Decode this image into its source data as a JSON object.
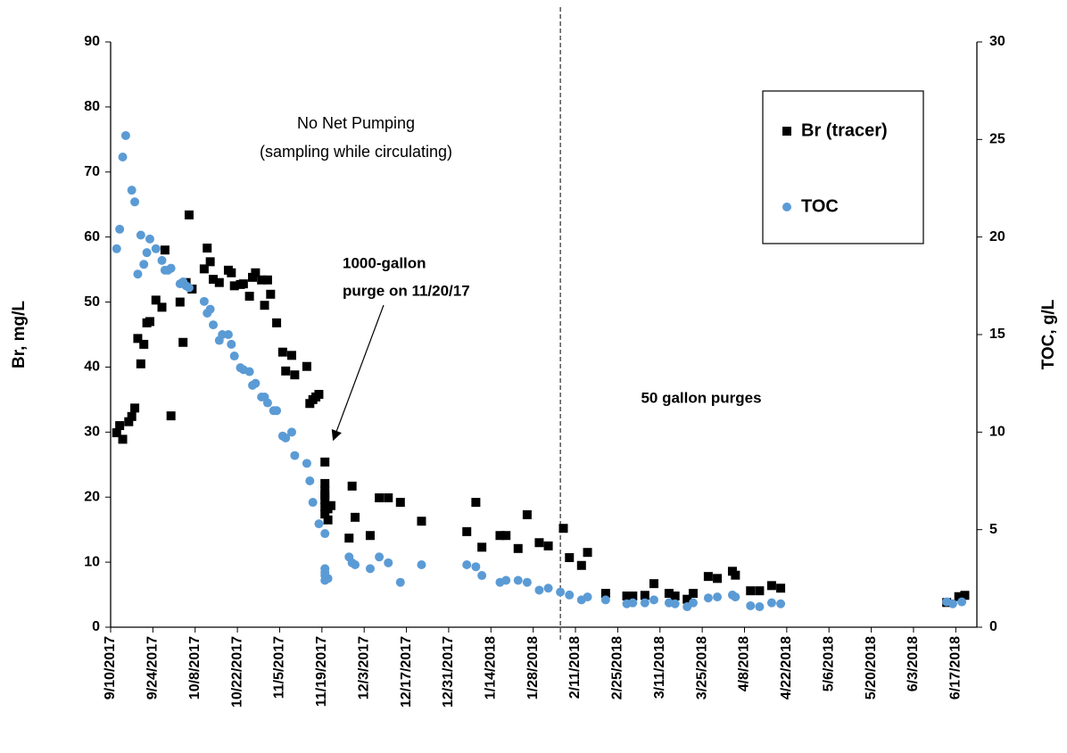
{
  "chart_data": {
    "type": "scatter",
    "y_label": "Br, mg/L",
    "y2_label": "TOC, g/L",
    "annotations": [
      "No Net Pumping",
      "(sampling while circulating)",
      "1000-gallon",
      "purge on 11/20/17",
      "50 gallon purges"
    ],
    "vline": "2/6/2018",
    "legend": "upper right",
    "xlim": [
      "9/10/2017",
      "6/24/2018"
    ],
    "xticks": [
      "9/10/2017",
      "9/24/2017",
      "10/8/2017",
      "10/22/2017",
      "11/5/2017",
      "11/19/2017",
      "12/3/2017",
      "12/17/2017",
      "12/31/2017",
      "1/14/2018",
      "1/28/2018",
      "2/11/2018",
      "2/25/2018",
      "3/11/2018",
      "3/25/2018",
      "4/8/2018",
      "4/22/2018",
      "5/6/2018",
      "5/20/2018",
      "6/3/2018",
      "6/17/2018"
    ],
    "ylim": [
      0,
      90
    ],
    "yticks": [
      0,
      10,
      20,
      30,
      40,
      50,
      60,
      70,
      80,
      90
    ],
    "y2lim": [
      0,
      30
    ],
    "y2ticks": [
      0,
      5,
      10,
      15,
      20,
      25,
      30
    ],
    "series": [
      {
        "name": "Br (tracer)",
        "color": "#000000",
        "marker": "square",
        "x": [
          "9/12/2017",
          "9/13/2017",
          "9/14/2017",
          "9/16/2017",
          "9/17/2017",
          "9/18/2017",
          "9/19/2017",
          "9/20/2017",
          "9/21/2017",
          "9/22/2017",
          "9/23/2017",
          "9/25/2017",
          "9/27/2017",
          "9/28/2017",
          "9/30/2017",
          "10/3/2017",
          "10/4/2017",
          "10/5/2017",
          "10/6/2017",
          "10/7/2017",
          "10/11/2017",
          "10/12/2017",
          "10/13/2017",
          "10/14/2017",
          "10/16/2017",
          "10/19/2017",
          "10/20/2017",
          "10/21/2017",
          "10/23/2017",
          "10/24/2017",
          "10/26/2017",
          "10/27/2017",
          "10/28/2017",
          "10/30/2017",
          "10/31/2017",
          "11/1/2017",
          "11/2/2017",
          "11/4/2017",
          "11/6/2017",
          "11/7/2017",
          "11/9/2017",
          "11/10/2017",
          "11/14/2017",
          "11/15/2017",
          "11/16/2017",
          "11/17/2017",
          "11/18/2017",
          "11/20/2017",
          "11/20/2017",
          "11/20/2017",
          "11/20/2017",
          "11/20/2017",
          "11/20/2017",
          "11/20/2017",
          "11/21/2017",
          "11/21/2017",
          "11/22/2017",
          "11/28/2017",
          "11/29/2017",
          "11/30/2017",
          "12/5/2017",
          "12/8/2017",
          "12/11/2017",
          "12/15/2017",
          "12/22/2017",
          "1/6/2018",
          "1/9/2018",
          "1/11/2018",
          "1/17/2018",
          "1/19/2018",
          "1/23/2018",
          "1/26/2018",
          "1/30/2018",
          "2/2/2018",
          "2/7/2018",
          "2/9/2018",
          "2/13/2018",
          "2/15/2018",
          "2/21/2018",
          "2/28/2018",
          "3/2/2018",
          "3/6/2018",
          "3/9/2018",
          "3/14/2018",
          "3/16/2018",
          "3/20/2018",
          "3/22/2018",
          "3/27/2018",
          "3/30/2018",
          "4/4/2018",
          "4/5/2018",
          "4/10/2018",
          "4/13/2018",
          "4/17/2018",
          "4/20/2018",
          "6/14/2018",
          "6/18/2018",
          "6/20/2018"
        ],
        "values": [
          29.9,
          31,
          28.9,
          31.6,
          32.4,
          33.7,
          44.4,
          40.5,
          43.5,
          46.8,
          47,
          50.3,
          49.2,
          58,
          32.5,
          50,
          43.8,
          53,
          63.4,
          52,
          55.1,
          58.3,
          56.2,
          53.5,
          53,
          54.9,
          54.5,
          52.5,
          52.7,
          52.8,
          50.9,
          53.8,
          54.5,
          53.4,
          49.5,
          53.4,
          51.2,
          46.8,
          42.3,
          39.4,
          41.8,
          38.8,
          40.1,
          34.4,
          35,
          35.4,
          35.8,
          25.4,
          22.1,
          21,
          20.3,
          19.6,
          18.5,
          17.4,
          16.5,
          18.2,
          18.7,
          13.7,
          21.7,
          16.9,
          14.1,
          19.9,
          19.9,
          19.2,
          16.3,
          14.7,
          19.2,
          12.3,
          14.1,
          14.1,
          12.1,
          17.3,
          13,
          12.5,
          15.2,
          10.7,
          9.5,
          11.5,
          5.2,
          4.8,
          4.8,
          4.9,
          6.7,
          5.2,
          4.8,
          4.3,
          5.2,
          7.8,
          7.5,
          8.6,
          8,
          5.6,
          5.6,
          6.4,
          6,
          3.8,
          4.7,
          4.9
        ]
      },
      {
        "name": "TOC",
        "color": "#5b9bd5",
        "marker": "circle",
        "axis": "y2",
        "x": [
          "9/12/2017",
          "9/13/2017",
          "9/14/2017",
          "9/15/2017",
          "9/17/2017",
          "9/18/2017",
          "9/19/2017",
          "9/20/2017",
          "9/21/2017",
          "9/22/2017",
          "9/23/2017",
          "9/25/2017",
          "9/27/2017",
          "9/28/2017",
          "9/29/2017",
          "9/30/2017",
          "10/3/2017",
          "10/4/2017",
          "10/5/2017",
          "10/6/2017",
          "10/11/2017",
          "10/12/2017",
          "10/13/2017",
          "10/14/2017",
          "10/16/2017",
          "10/17/2017",
          "10/19/2017",
          "10/20/2017",
          "10/21/2017",
          "10/23/2017",
          "10/24/2017",
          "10/26/2017",
          "10/27/2017",
          "10/28/2017",
          "10/30/2017",
          "10/31/2017",
          "11/1/2017",
          "11/3/2017",
          "11/4/2017",
          "11/6/2017",
          "11/7/2017",
          "11/9/2017",
          "11/10/2017",
          "11/14/2017",
          "11/15/2017",
          "11/16/2017",
          "11/18/2017",
          "11/20/2017",
          "11/20/2017",
          "11/20/2017",
          "11/20/2017",
          "11/20/2017",
          "11/21/2017",
          "11/28/2017",
          "11/29/2017",
          "11/30/2017",
          "12/5/2017",
          "12/8/2017",
          "12/11/2017",
          "12/15/2017",
          "12/22/2017",
          "1/6/2018",
          "1/9/2018",
          "1/11/2018",
          "1/17/2018",
          "1/19/2018",
          "1/23/2018",
          "1/26/2018",
          "1/30/2018",
          "2/2/2018",
          "2/6/2018",
          "2/9/2018",
          "2/13/2018",
          "2/15/2018",
          "2/21/2018",
          "2/28/2018",
          "3/2/2018",
          "3/6/2018",
          "3/9/2018",
          "3/14/2018",
          "3/16/2018",
          "3/20/2018",
          "3/22/2018",
          "3/27/2018",
          "3/30/2018",
          "4/4/2018",
          "4/5/2018",
          "4/10/2018",
          "4/13/2018",
          "4/17/2018",
          "4/20/2018",
          "6/14/2018",
          "6/16/2018",
          "6/19/2018"
        ],
        "values": [
          19.4,
          20.4,
          24.1,
          25.2,
          22.4,
          21.8,
          18.1,
          20.1,
          18.6,
          19.2,
          19.9,
          19.4,
          18.8,
          18.3,
          18.3,
          18.4,
          17.6,
          17.7,
          17.5,
          17.4,
          16.7,
          16.1,
          16.3,
          15.5,
          14.7,
          15,
          15,
          14.5,
          13.9,
          13.3,
          13.2,
          13.1,
          12.4,
          12.5,
          11.8,
          11.8,
          11.5,
          11.1,
          11.1,
          9.8,
          9.7,
          10,
          8.8,
          8.4,
          7.5,
          6.4,
          5.3,
          4.8,
          3,
          2.8,
          2.65,
          2.4,
          2.5,
          3.6,
          3.3,
          3.2,
          3,
          3.6,
          3.3,
          2.3,
          3.2,
          3.2,
          3.1,
          2.65,
          2.3,
          2.4,
          2.4,
          2.3,
          1.9,
          2,
          1.8,
          1.65,
          1.4,
          1.55,
          1.4,
          1.2,
          1.25,
          1.25,
          1.4,
          1.25,
          1.2,
          1.05,
          1.25,
          1.5,
          1.55,
          1.65,
          1.55,
          1.1,
          1.05,
          1.25,
          1.2,
          1.3,
          1.2,
          1.3
        ]
      }
    ]
  }
}
